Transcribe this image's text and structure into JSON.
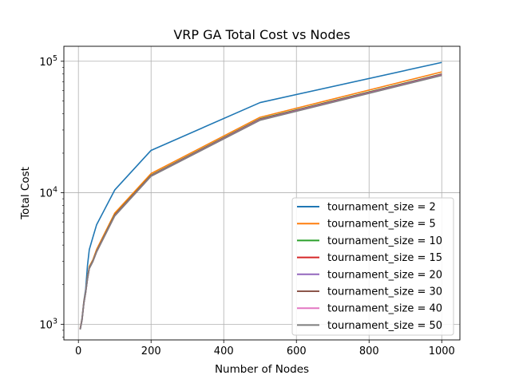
{
  "chart_data": {
    "type": "line",
    "title": "VRP GA Total Cost vs Nodes",
    "xlabel": "Number of Nodes",
    "ylabel": "Total Cost",
    "yscale": "log",
    "xlim": [
      -40,
      1050
    ],
    "ylim": [
      760,
      130000
    ],
    "grid": true,
    "legend_position": "lower-right",
    "x_ticks": [
      0,
      200,
      400,
      600,
      800,
      1000
    ],
    "y_ticks": [
      {
        "value": 1000,
        "base": "10",
        "exp": "3"
      },
      {
        "value": 10000,
        "base": "10",
        "exp": "4"
      },
      {
        "value": 100000,
        "base": "10",
        "exp": "5"
      }
    ],
    "x": [
      5,
      10,
      15,
      20,
      25,
      30,
      40,
      50,
      100,
      200,
      500,
      1000
    ],
    "series": [
      {
        "name": "tournament_size = 2",
        "color": "#1f77b4",
        "values": [
          920,
          1120,
          1500,
          1850,
          2800,
          3700,
          4600,
          5700,
          10500,
          21000,
          48500,
          98000
        ]
      },
      {
        "name": "tournament_size = 5",
        "color": "#ff7f0e",
        "values": [
          930,
          1100,
          1480,
          1780,
          2300,
          2750,
          3100,
          3700,
          7000,
          14000,
          37500,
          83000
        ]
      },
      {
        "name": "tournament_size = 10",
        "color": "#2ca02c",
        "values": [
          925,
          1090,
          1460,
          1760,
          2250,
          2700,
          3050,
          3600,
          6800,
          13600,
          36500,
          80000
        ]
      },
      {
        "name": "tournament_size = 15",
        "color": "#d62728",
        "values": [
          920,
          1085,
          1450,
          1750,
          2230,
          2680,
          3030,
          3580,
          6750,
          13500,
          36200,
          79500
        ]
      },
      {
        "name": "tournament_size = 20",
        "color": "#9467bd",
        "values": [
          918,
          1080,
          1445,
          1745,
          2220,
          2670,
          3020,
          3560,
          6700,
          13450,
          36000,
          79000
        ]
      },
      {
        "name": "tournament_size = 30",
        "color": "#8c564b",
        "values": [
          915,
          1075,
          1440,
          1740,
          2210,
          2660,
          3010,
          3550,
          6680,
          13400,
          35800,
          78500
        ]
      },
      {
        "name": "tournament_size = 40",
        "color": "#e377c2",
        "values": [
          915,
          1075,
          1440,
          1738,
          2205,
          2655,
          3005,
          3545,
          6670,
          13380,
          35700,
          78300
        ]
      },
      {
        "name": "tournament_size = 50",
        "color": "#7f7f7f",
        "values": [
          912,
          1070,
          1435,
          1735,
          2200,
          2650,
          3000,
          3540,
          6660,
          13350,
          35600,
          78000
        ]
      }
    ]
  }
}
